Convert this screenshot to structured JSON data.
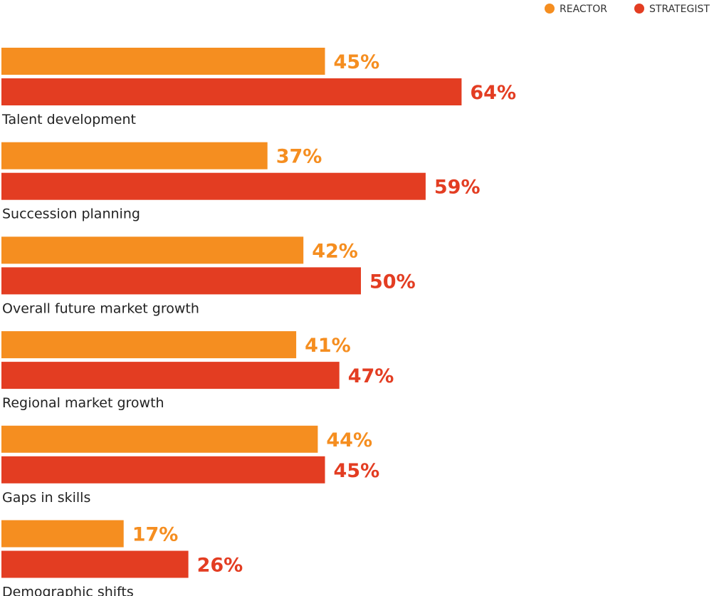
{
  "chart_data": {
    "type": "bar",
    "orientation": "horizontal",
    "categories": [
      "Talent development",
      "Succession planning",
      "Overall future market growth",
      "Regional market growth",
      "Gaps in skills",
      "Demographic shifts"
    ],
    "series": [
      {
        "name": "REACTOR",
        "color": "#F58E20",
        "values": [
          45,
          37,
          42,
          41,
          44,
          17
        ]
      },
      {
        "name": "STRATEGIST",
        "color": "#E33D22",
        "values": [
          64,
          59,
          50,
          47,
          45,
          26
        ]
      }
    ],
    "value_suffix": "%",
    "xlim": [
      0,
      100
    ],
    "grid": false,
    "legend_position": "top-right"
  }
}
